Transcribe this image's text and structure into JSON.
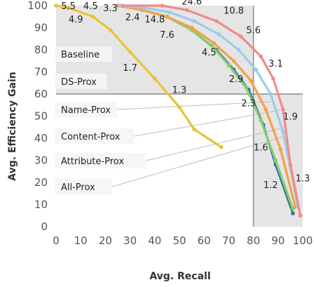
{
  "chart_data": {
    "type": "line",
    "title": "",
    "xlabel": "Avg. Recall",
    "ylabel": "Avg. Efficiency Gain",
    "xlim": [
      0,
      100
    ],
    "ylim": [
      0,
      100
    ],
    "x_ticks": [
      0,
      10,
      20,
      30,
      40,
      50,
      60,
      70,
      80,
      90,
      100
    ],
    "y_ticks": [
      0,
      10,
      20,
      30,
      40,
      50,
      60,
      70,
      80,
      90,
      100
    ],
    "grid": false,
    "reference_lines": {
      "x": 80,
      "y": 60
    },
    "shaded_regions": [
      {
        "x": [
          0,
          80
        ],
        "y": [
          60,
          100
        ]
      },
      {
        "x": [
          80,
          100
        ],
        "y": [
          0,
          60
        ]
      }
    ],
    "series": [
      {
        "name": "Baseline",
        "color": "#e8c33a",
        "x": [
          0,
          5,
          15,
          22,
          30,
          40,
          50,
          56,
          67
        ],
        "y": [
          100,
          99,
          95,
          89,
          79,
          67,
          54,
          44,
          36
        ]
      },
      {
        "name": "DS-Prox",
        "color": "#3e6fa6",
        "x": [
          25,
          35,
          45,
          55,
          65,
          72,
          78,
          84,
          89,
          96
        ],
        "y": [
          100,
          98,
          95,
          89,
          80,
          71,
          62,
          46,
          28,
          6
        ]
      },
      {
        "name": "Name-Prox",
        "color": "#86cf6e",
        "x": [
          25,
          35,
          45,
          55,
          63,
          70,
          77,
          83,
          89,
          96
        ],
        "y": [
          100,
          98,
          95,
          89,
          82,
          73,
          63,
          48,
          30,
          8
        ]
      },
      {
        "name": "Content-Prox",
        "color": "#f2a14a",
        "x": [
          25,
          35,
          45,
          55,
          64,
          72,
          79,
          85,
          91,
          97
        ],
        "y": [
          100,
          98,
          95,
          90,
          83,
          75,
          66,
          53,
          35,
          9
        ]
      },
      {
        "name": "Attribute-Prox",
        "color": "#9ccbe8",
        "x": [
          26,
          36,
          46,
          56,
          66,
          74,
          81,
          87,
          92,
          98
        ],
        "y": [
          100,
          99,
          97,
          93,
          87,
          80,
          71,
          60,
          43,
          9
        ]
      },
      {
        "name": "All-Prox",
        "color": "#f28a8a",
        "x": [
          27,
          43,
          53,
          65,
          75,
          83,
          88,
          92,
          95,
          99
        ],
        "y": [
          100,
          100,
          98,
          93,
          86,
          77,
          67,
          53,
          28,
          5
        ]
      }
    ],
    "legend_labels": [
      "Baseline",
      "DS-Prox",
      "Name-Prox",
      "Content-Prox",
      "Attribute-Prox",
      "All-Prox"
    ],
    "annotations": [
      {
        "text": "5.5",
        "x": 5,
        "y": 100
      },
      {
        "text": "4.5",
        "x": 14,
        "y": 100
      },
      {
        "text": "4.9",
        "x": 8,
        "y": 94
      },
      {
        "text": "3.3",
        "x": 22,
        "y": 99
      },
      {
        "text": "2.4",
        "x": 31,
        "y": 95
      },
      {
        "text": "14.8",
        "x": 40,
        "y": 94
      },
      {
        "text": "24.6",
        "x": 55,
        "y": 102
      },
      {
        "text": "10.8",
        "x": 72,
        "y": 98
      },
      {
        "text": "7.6",
        "x": 45,
        "y": 87
      },
      {
        "text": "5.6",
        "x": 80,
        "y": 89
      },
      {
        "text": "4.5",
        "x": 62,
        "y": 79
      },
      {
        "text": "1.7",
        "x": 30,
        "y": 72
      },
      {
        "text": "3.1",
        "x": 89,
        "y": 74
      },
      {
        "text": "2.9",
        "x": 73,
        "y": 67
      },
      {
        "text": "1.3",
        "x": 50,
        "y": 62
      },
      {
        "text": "2.3",
        "x": 78,
        "y": 56
      },
      {
        "text": "1.9",
        "x": 95,
        "y": 50
      },
      {
        "text": "1.6",
        "x": 83,
        "y": 36
      },
      {
        "text": "1.2",
        "x": 87,
        "y": 19
      },
      {
        "text": "1.3",
        "x": 100,
        "y": 22
      }
    ]
  }
}
